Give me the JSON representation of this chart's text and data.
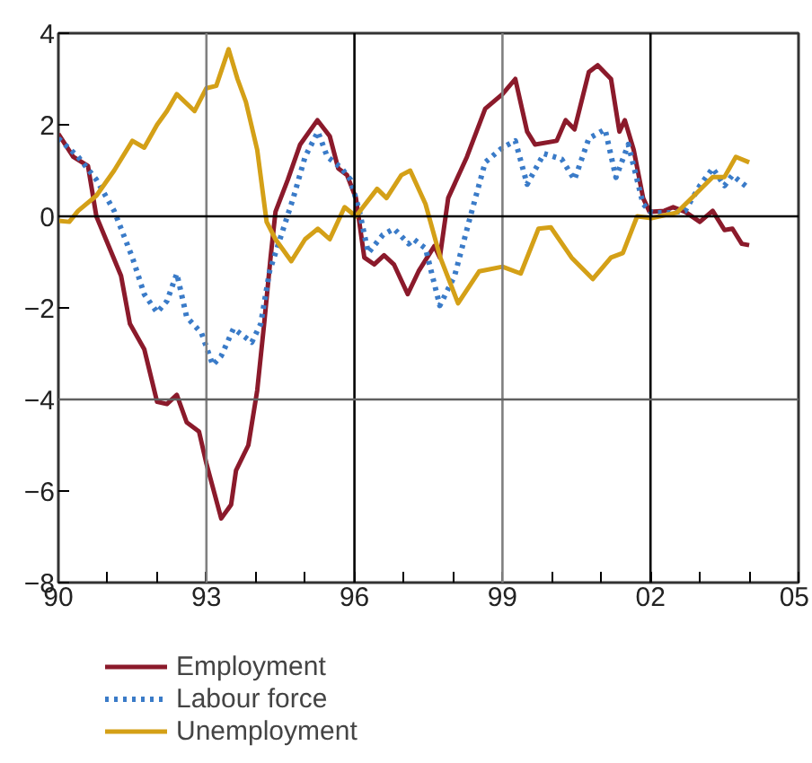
{
  "chart_data": {
    "type": "line",
    "legend": "bottom",
    "grid": false,
    "xlim": [
      1990,
      2005
    ],
    "ylim": [
      -8,
      4
    ],
    "xticks": [
      {
        "value": 1990,
        "label": "90"
      },
      {
        "value": 1991,
        "label": null
      },
      {
        "value": 1992,
        "label": null
      },
      {
        "value": 1993,
        "label": "93"
      },
      {
        "value": 1994,
        "label": null
      },
      {
        "value": 1995,
        "label": null
      },
      {
        "value": 1996,
        "label": "96"
      },
      {
        "value": 1997,
        "label": null
      },
      {
        "value": 1998,
        "label": null
      },
      {
        "value": 1999,
        "label": "99"
      },
      {
        "value": 2000,
        "label": null
      },
      {
        "value": 2001,
        "label": null
      },
      {
        "value": 2002,
        "label": "02"
      },
      {
        "value": 2003,
        "label": null
      },
      {
        "value": 2004,
        "label": null
      },
      {
        "value": 2005,
        "label": "05"
      }
    ],
    "yticks": [
      -8,
      -6,
      -4,
      -2,
      0,
      2,
      4
    ],
    "ref_lines": [
      {
        "axis": "x",
        "value": 1993,
        "color": "#808080"
      },
      {
        "axis": "x",
        "value": 1996,
        "color": "#000000"
      },
      {
        "axis": "x",
        "value": 1999,
        "color": "#808080"
      },
      {
        "axis": "x",
        "value": 2002,
        "color": "#000000"
      },
      {
        "axis": "y",
        "value": 0,
        "color": "#000000"
      },
      {
        "axis": "y",
        "value": -4,
        "color": "#606060"
      }
    ],
    "series": [
      {
        "name": "Employment",
        "color": "#8b1a2b",
        "line_style": "solid",
        "x": [
          1990.0,
          1990.3,
          1990.6,
          1990.77,
          1991.27,
          1991.45,
          1991.74,
          1992.0,
          1992.2,
          1992.4,
          1992.6,
          1992.85,
          1993.0,
          1993.3,
          1993.5,
          1993.6,
          1993.85,
          1994.03,
          1994.17,
          1994.3,
          1994.4,
          1994.65,
          1994.9,
          1995.25,
          1995.5,
          1995.67,
          1995.85,
          1996.03,
          1996.2,
          1996.4,
          1996.6,
          1996.8,
          1997.08,
          1997.3,
          1997.62,
          1997.73,
          1997.9,
          1998.28,
          1998.65,
          1999.0,
          1999.26,
          1999.5,
          1999.66,
          2000.1,
          2000.28,
          2000.46,
          2000.75,
          2000.93,
          2001.2,
          2001.37,
          2001.48,
          2001.66,
          2001.85,
          2001.98,
          2002.28,
          2002.46,
          2002.7,
          2003.0,
          2003.26,
          2003.5,
          2003.66,
          2003.85,
          2004.0
        ],
        "values": [
          1.8,
          1.3,
          1.1,
          0,
          -1.3,
          -2.35,
          -2.9,
          -4.05,
          -4.1,
          -3.9,
          -4.5,
          -4.7,
          -5.4,
          -6.6,
          -6.3,
          -5.55,
          -5.0,
          -3.8,
          -2.35,
          -0.9,
          0.1,
          0.8,
          1.57,
          2.1,
          1.75,
          1.05,
          0.9,
          0.4,
          -0.9,
          -1.05,
          -0.85,
          -1.05,
          -1.7,
          -1.2,
          -0.65,
          -0.9,
          0.4,
          1.3,
          2.35,
          2.67,
          3.0,
          1.85,
          1.57,
          1.65,
          2.1,
          1.9,
          3.15,
          3.3,
          3.0,
          1.85,
          2.1,
          1.45,
          0.4,
          0.1,
          0.12,
          0.2,
          0.1,
          -0.12,
          0.12,
          -0.3,
          -0.27,
          -0.6,
          -0.63
        ]
      },
      {
        "name": "Labour force",
        "color": "#3a7bc8",
        "line_style": "dotted",
        "x": [
          1990.0,
          1990.4,
          1990.77,
          1991.13,
          1991.5,
          1991.74,
          1992.0,
          1992.2,
          1992.4,
          1992.6,
          1992.9,
          1993.13,
          1993.3,
          1993.55,
          1993.92,
          1994.1,
          1994.28,
          1994.58,
          1994.76,
          1995.0,
          1995.26,
          1995.45,
          1995.74,
          1995.92,
          1996.1,
          1996.28,
          1996.58,
          1996.8,
          1997.1,
          1997.2,
          1997.44,
          1997.73,
          1998.03,
          1998.35,
          1998.65,
          1999.0,
          1999.26,
          1999.5,
          1999.84,
          2000.2,
          2000.46,
          2000.75,
          2001.08,
          2001.3,
          2001.55,
          2001.85,
          2002.02,
          2002.4,
          2002.7,
          2003.0,
          2003.26,
          2003.5,
          2003.66,
          2004.0
        ],
        "values": [
          1.7,
          1.3,
          0.8,
          0.12,
          -0.9,
          -1.7,
          -2.1,
          -1.85,
          -1.25,
          -2.2,
          -2.55,
          -3.25,
          -3.05,
          -2.45,
          -2.75,
          -2.35,
          -1.2,
          -0.2,
          0.4,
          1.3,
          1.85,
          1.3,
          1.05,
          0.8,
          0.12,
          -0.8,
          -0.4,
          -0.27,
          -0.6,
          -0.5,
          -0.7,
          -1.95,
          -1.3,
          0,
          1.18,
          1.5,
          1.65,
          0.7,
          1.37,
          1.25,
          0.8,
          1.7,
          1.9,
          0.85,
          1.57,
          0.27,
          0.08,
          0.08,
          0.12,
          0.67,
          1.05,
          0.67,
          0.9,
          0.6
        ]
      },
      {
        "name": "Unemployment",
        "color": "#d4a017",
        "line_style": "solid",
        "x": [
          1990.0,
          1990.22,
          1990.4,
          1990.77,
          1991.13,
          1991.5,
          1991.74,
          1992.0,
          1992.2,
          1992.4,
          1992.76,
          1993.0,
          1993.2,
          1993.45,
          1993.63,
          1993.8,
          1994.03,
          1994.22,
          1994.4,
          1994.72,
          1995.0,
          1995.26,
          1995.5,
          1995.8,
          1996.03,
          1996.46,
          1996.65,
          1996.95,
          1997.13,
          1997.44,
          1997.74,
          1998.1,
          1998.53,
          1999.0,
          1999.37,
          1999.73,
          1999.98,
          2000.4,
          2000.83,
          2001.2,
          2001.44,
          2001.73,
          2002.02,
          2002.53,
          2002.9,
          2003.26,
          2003.5,
          2003.73,
          2004.0
        ],
        "values": [
          -0.1,
          -0.12,
          0.12,
          0.45,
          1.0,
          1.65,
          1.5,
          2.0,
          2.3,
          2.67,
          2.3,
          2.8,
          2.85,
          3.65,
          3.0,
          2.5,
          1.45,
          -0.12,
          -0.5,
          -0.98,
          -0.5,
          -0.27,
          -0.5,
          0.2,
          0,
          0.6,
          0.4,
          0.9,
          1.0,
          0.27,
          -0.9,
          -1.9,
          -1.2,
          -1.1,
          -1.25,
          -0.27,
          -0.24,
          -0.9,
          -1.37,
          -0.9,
          -0.8,
          0,
          -0.04,
          0.08,
          0.47,
          0.86,
          0.86,
          1.3,
          1.18
        ]
      }
    ]
  }
}
